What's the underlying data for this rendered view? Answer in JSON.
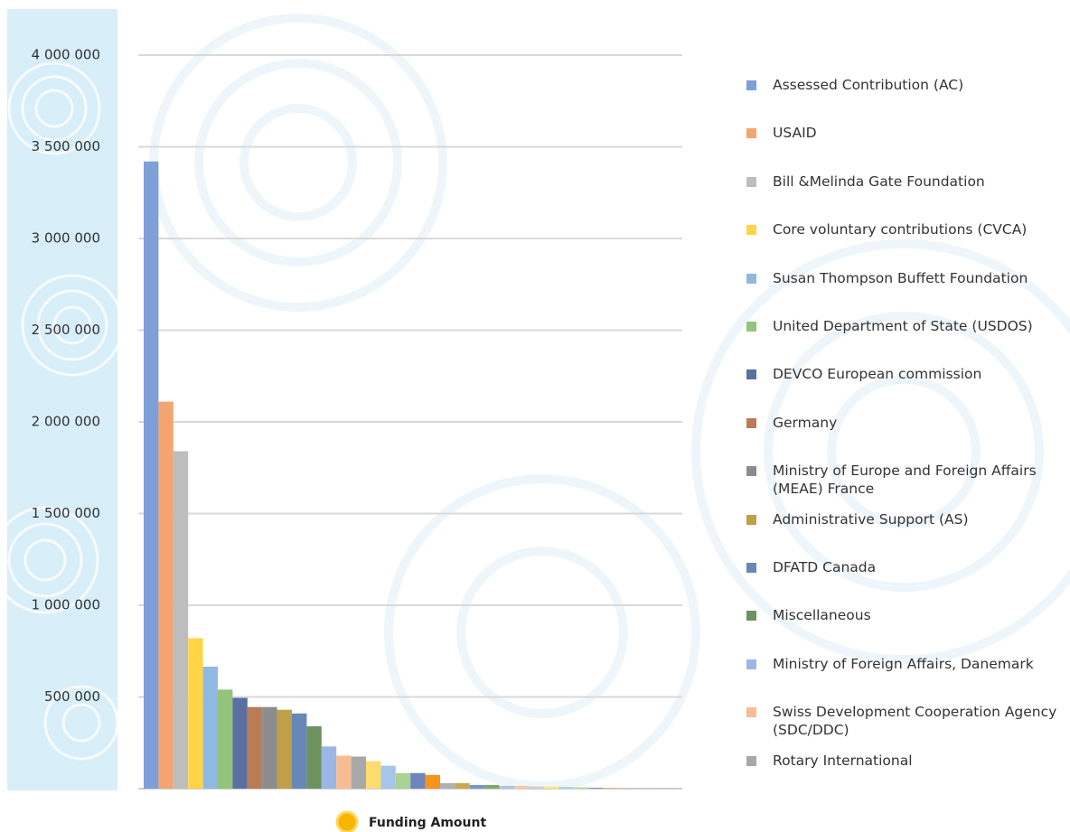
{
  "chart_data": {
    "type": "bar",
    "categories": [
      "Assessed Contribution (AC)",
      "USAID",
      "Bill &Melinda Gate Foundation",
      "Core voluntary contributions (CVCA)",
      "Susan Thompson Buffett Foundation",
      "United Department of State (USDOS)",
      "DEVCO European commission",
      "Germany",
      "Ministry of Europe and Foreign Affairs (MEAE) France",
      "Administrative Support (AS)",
      "DFATD Canada",
      "Miscellaneous",
      "Ministry of Foreign Affairs, Danemark",
      "Swiss Development Cooperation Agency (SDC/DDC)",
      "Rotary International",
      null,
      null,
      null,
      null,
      null,
      null,
      null,
      null,
      null,
      null,
      null,
      null,
      null,
      null,
      null,
      null,
      null,
      null,
      null,
      null,
      null
    ],
    "values": [
      3420000,
      2110000,
      1840000,
      820000,
      665000,
      540000,
      495000,
      445000,
      445000,
      430000,
      410000,
      340000,
      230000,
      180000,
      175000,
      150000,
      125000,
      85000,
      85000,
      75000,
      30000,
      30000,
      20000,
      20000,
      15000,
      15000,
      12000,
      12000,
      10000,
      8000,
      5000,
      3000,
      2000,
      1000,
      800,
      500
    ],
    "colors": [
      "#7f9fd8",
      "#f4a46e",
      "#bdbdbd",
      "#ffd447",
      "#8fb9e0",
      "#92c47b",
      "#5b6fa3",
      "#b97c56",
      "#8c8c8c",
      "#bf9f48",
      "#6787b7",
      "#6e9160",
      "#9cb6e6",
      "#f8bc95",
      "#a8a8a8",
      "#ffdc70",
      "#a5c6e8",
      "#a8d394",
      "#6f84bb",
      "#f7941d",
      "#b0b0b0",
      "#c9a84f",
      "#7797c7",
      "#7fa86e",
      "#acc4ec",
      "#f9c7a5",
      "#d0d0d0",
      "#ffe48c",
      "#b5d0ec",
      "#b8dca6",
      "#8494c4",
      "#ffaa44",
      "#bbbbbb",
      "#d0b565",
      "#8aa6d2",
      "#90b580"
    ],
    "ylim": [
      0,
      4000000
    ],
    "yticks": [
      {
        "value": 500000,
        "label": "500 000"
      },
      {
        "value": 1000000,
        "label": "1 000 000"
      },
      {
        "value": 1500000,
        "label": "1 500 000"
      },
      {
        "value": 2000000,
        "label": "2 000 000"
      },
      {
        "value": 2500000,
        "label": "2 500 000"
      },
      {
        "value": 3000000,
        "label": "3 000 000"
      },
      {
        "value": 3500000,
        "label": "3 500 000"
      },
      {
        "value": 4000000,
        "label": "4 000 000"
      }
    ],
    "grid": true,
    "series_name": "Funding Amount"
  }
}
